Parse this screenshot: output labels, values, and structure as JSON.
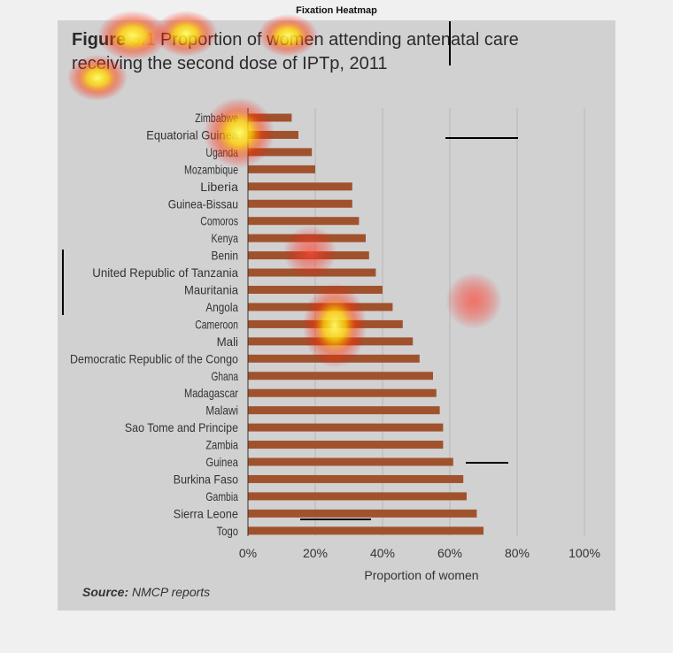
{
  "window": {
    "title": "Fixation Heatmap"
  },
  "figure": {
    "label": "Figure",
    "number": "5.1",
    "title_rest": " Proportion of women attending antenatal care",
    "title_line2": "receiving the second dose of IPTp, 2011",
    "source_label": "Source:",
    "source_text": " NMCP reports"
  },
  "colors": {
    "bar": "#a0522d",
    "panel": "#d1d1d1",
    "accent": "#e9962e"
  },
  "chart_data": {
    "type": "bar",
    "orientation": "horizontal",
    "title": "Figure 5.1 Proportion of women attending antenatal care receiving the second dose of IPTp, 2011",
    "xlabel": "Proportion of women",
    "ylabel": "",
    "xlim": [
      0,
      100
    ],
    "xticks": [
      "0%",
      "20%",
      "40%",
      "60%",
      "80%",
      "100%"
    ],
    "grid": true,
    "categories": [
      "Zimbabwe",
      "Equatorial Guinea",
      "Uganda",
      "Mozambique",
      "Liberia",
      "Guinea-Bissau",
      "Comoros",
      "Kenya",
      "Benin",
      "United Republic of Tanzania",
      "Mauritania",
      "Angola",
      "Cameroon",
      "Mali",
      "Democratic Republic of the Congo",
      "Ghana",
      "Madagascar",
      "Malawi",
      "Sao Tome and Principe",
      "Zambia",
      "Guinea",
      "Burkina Faso",
      "Gambia",
      "Sierra Leone",
      "Togo"
    ],
    "values": [
      13,
      15,
      19,
      20,
      31,
      31,
      33,
      35,
      36,
      38,
      40,
      43,
      46,
      49,
      51,
      55,
      56,
      57,
      58,
      58,
      61,
      64,
      65,
      68,
      70
    ]
  }
}
